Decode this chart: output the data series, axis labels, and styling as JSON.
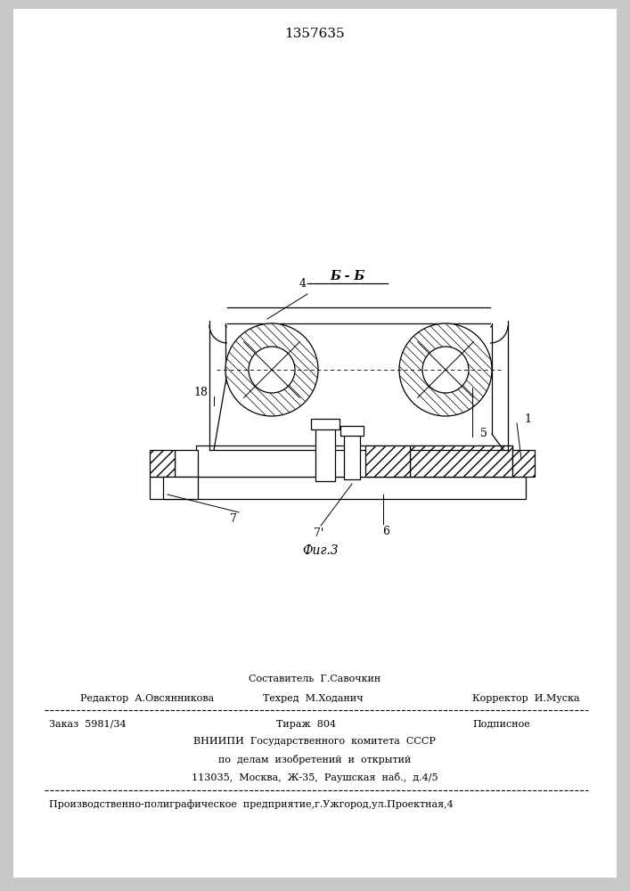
{
  "title": "1357635",
  "bg_color": "#f0f0f0",
  "section_label": "Б - Б",
  "fig_label": "Фиг.3",
  "footer_line1_center": "Составитель  Г.Савочкин",
  "footer_line2_left": "Редактор  А.Овсянникова",
  "footer_line2_center": "Техред  М.Ходанич",
  "footer_line2_right": "Корректор  И.Муска",
  "footer_line3_left": "Заказ  5981/34",
  "footer_line3_center": "Тираж  804",
  "footer_line3_right": "Подписное",
  "footer_line4": "ВНИИПИ  Государственного  комитета  СССР",
  "footer_line5": "по  делам  изобретений  и  открытий",
  "footer_line6": "113035,  Москва,  Ж-35,  Раушская  наб.,  д.4/5",
  "footer_last": "Производственно-полиграфическое  предприятие,г.Ужгород,ул.Проектная,4"
}
